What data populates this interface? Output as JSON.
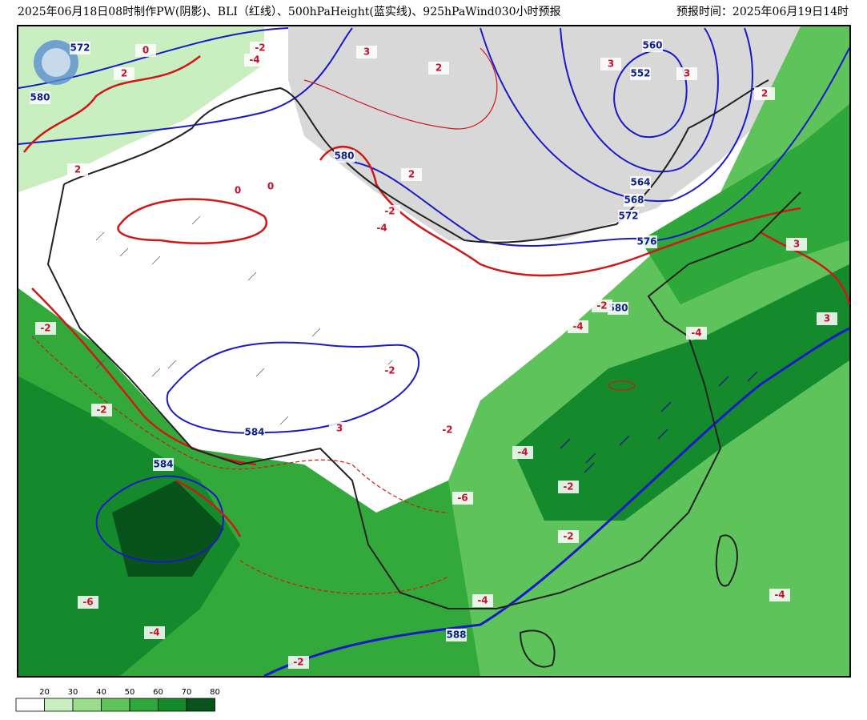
{
  "header": {
    "title": "2025年06月18日08时制作PW(阴影)、BLI（红线）、500hPaHeight(蓝实线)、925hPaWind030小时预报",
    "valid_time": "预报时间：2025年06月19日14时"
  },
  "height_labels": [
    572,
    580,
    580,
    560,
    552,
    564,
    568,
    572,
    576,
    580,
    584,
    584,
    588
  ],
  "bli_labels": [
    0,
    2,
    3,
    -2,
    -4,
    2,
    0,
    0,
    2,
    -2,
    -4,
    2,
    3,
    3,
    2,
    3,
    3,
    -2,
    -4,
    -2,
    -4,
    -2,
    3,
    -2,
    -4,
    -6,
    -2,
    -2,
    -6,
    -4,
    -4,
    -2,
    -4,
    -2
  ],
  "legend": {
    "ticks": [
      20,
      30,
      40,
      50,
      60,
      70,
      80
    ],
    "colors": [
      "#ffffff",
      "#c9efc0",
      "#9bdd8d",
      "#5fc35b",
      "#2ea83a",
      "#148a2c",
      "#07531b"
    ]
  }
}
